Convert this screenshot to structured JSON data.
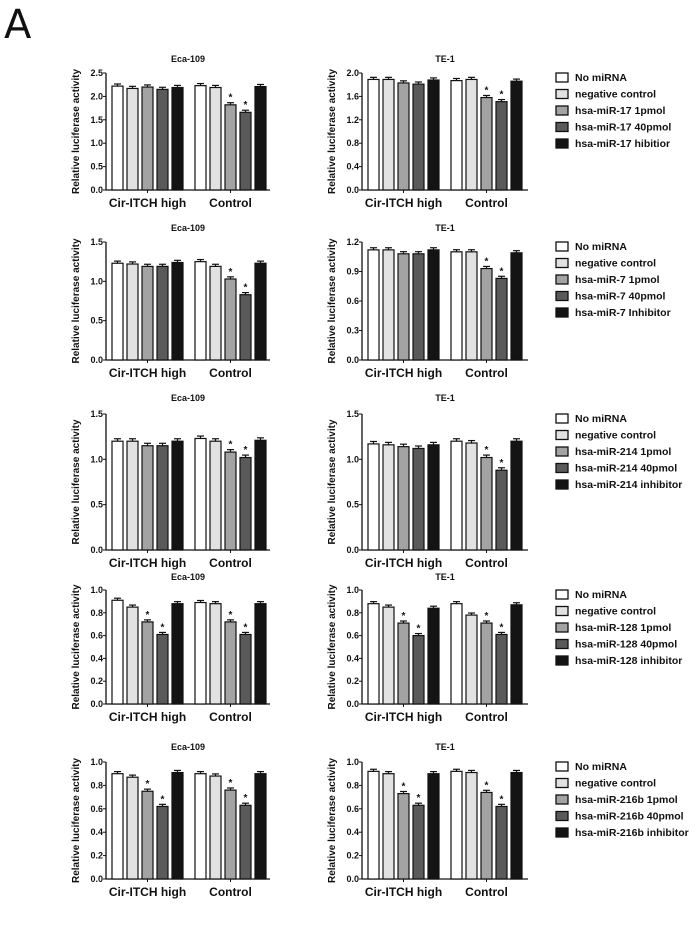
{
  "panel_label": "A",
  "colors": [
    "#ffffff",
    "#e2e2e2",
    "#a3a3a3",
    "#5a5a5a",
    "#141414"
  ],
  "chart_data": [
    {
      "type": "bar",
      "title": "Eca-109",
      "ylabel": "Relative luciferase activity",
      "categories": [
        "Cir-ITCH high",
        "Control"
      ],
      "ylim": [
        0,
        2.5
      ],
      "yticks": [
        "0.0",
        "0.5",
        "1.0",
        "1.5",
        "2.0",
        "2.5"
      ],
      "series": [
        {
          "name": "No miRNA",
          "values": [
            2.22,
            2.23
          ]
        },
        {
          "name": "negative control",
          "values": [
            2.17,
            2.19
          ]
        },
        {
          "name": "hsa-miR-17 1pmol",
          "values": [
            2.2,
            1.82
          ]
        },
        {
          "name": "hsa-miR-17 40pmol",
          "values": [
            2.15,
            1.66
          ]
        },
        {
          "name": "hsa-miR-17 hibitior",
          "values": [
            2.19,
            2.21
          ]
        }
      ],
      "significant": [
        [
          false,
          false,
          false,
          false,
          false
        ],
        [
          false,
          false,
          true,
          true,
          false
        ]
      ],
      "star": "*"
    },
    {
      "type": "bar",
      "title": "TE-1",
      "ylabel": "Relative luciferase activity",
      "categories": [
        "Cir-ITCH high",
        "Control"
      ],
      "ylim": [
        0,
        2.0
      ],
      "yticks": [
        "0.0",
        "0.4",
        "0.8",
        "1.2",
        "1.6",
        "2.0"
      ],
      "series": [
        {
          "name": "No miRNA",
          "values": [
            1.89,
            1.87
          ]
        },
        {
          "name": "negative control",
          "values": [
            1.89,
            1.89
          ]
        },
        {
          "name": "hsa-miR-17 1pmol",
          "values": [
            1.83,
            1.58
          ]
        },
        {
          "name": "hsa-miR-17 40pmol",
          "values": [
            1.81,
            1.51
          ]
        },
        {
          "name": "hsa-miR-17 hibitior",
          "values": [
            1.88,
            1.86
          ]
        }
      ],
      "significant": [
        [
          false,
          false,
          false,
          false,
          false
        ],
        [
          false,
          false,
          true,
          true,
          false
        ]
      ],
      "star": "*",
      "legend": "right"
    },
    {
      "type": "bar",
      "title": "Eca-109",
      "ylabel": "Relative luciferase activity",
      "categories": [
        "Cir-ITCH high",
        "Control"
      ],
      "ylim": [
        0,
        1.5
      ],
      "yticks": [
        "0.0",
        "0.5",
        "1.0",
        "1.5"
      ],
      "series": [
        {
          "name": "No miRNA",
          "values": [
            1.23,
            1.25
          ]
        },
        {
          "name": "negative control",
          "values": [
            1.22,
            1.19
          ]
        },
        {
          "name": "hsa-miR-7 1pmol",
          "values": [
            1.19,
            1.03
          ]
        },
        {
          "name": "hsa-miR-7 40pmol",
          "values": [
            1.19,
            0.83
          ]
        },
        {
          "name": "hsa-miR-7 Inhibitor",
          "values": [
            1.24,
            1.23
          ]
        }
      ],
      "significant": [
        [
          false,
          false,
          false,
          false,
          false
        ],
        [
          false,
          false,
          true,
          true,
          false
        ]
      ],
      "star": "*"
    },
    {
      "type": "bar",
      "title": "TE-1",
      "ylabel": "Relative luciferase activity",
      "categories": [
        "Cir-ITCH high",
        "Control"
      ],
      "ylim": [
        0,
        1.2
      ],
      "yticks": [
        "0.0",
        "0.3",
        "0.6",
        "0.9",
        "1.2"
      ],
      "series": [
        {
          "name": "No miRNA",
          "values": [
            1.12,
            1.1
          ]
        },
        {
          "name": "negative control",
          "values": [
            1.12,
            1.1
          ]
        },
        {
          "name": "hsa-miR-7 1pmol",
          "values": [
            1.08,
            0.93
          ]
        },
        {
          "name": "hsa-miR-7 40pmol",
          "values": [
            1.08,
            0.83
          ]
        },
        {
          "name": "hsa-miR-7 Inhibitor",
          "values": [
            1.12,
            1.09
          ]
        }
      ],
      "significant": [
        [
          false,
          false,
          false,
          false,
          false
        ],
        [
          false,
          false,
          true,
          true,
          false
        ]
      ],
      "star": "*",
      "legend": "right"
    },
    {
      "type": "bar",
      "title": "Eca-109",
      "ylabel": "Relative luciferase activity",
      "categories": [
        "Cir-ITCH high",
        "Control"
      ],
      "ylim": [
        0,
        1.5
      ],
      "yticks": [
        "0.0",
        "0.5",
        "1.0",
        "1.5"
      ],
      "series": [
        {
          "name": "No miRNA",
          "values": [
            1.2,
            1.23
          ]
        },
        {
          "name": "negative control",
          "values": [
            1.2,
            1.2
          ]
        },
        {
          "name": "hsa-miR-214 1pmol",
          "values": [
            1.15,
            1.08
          ]
        },
        {
          "name": "hsa-miR-214 40pmol",
          "values": [
            1.15,
            1.02
          ]
        },
        {
          "name": "hsa-miR-214 inhibitor",
          "values": [
            1.2,
            1.21
          ]
        }
      ],
      "significant": [
        [
          false,
          false,
          false,
          false,
          false
        ],
        [
          false,
          false,
          true,
          true,
          false
        ]
      ],
      "star": "*"
    },
    {
      "type": "bar",
      "title": "TE-1",
      "ylabel": "Relative luciferase activity",
      "categories": [
        "Cir-ITCH high",
        "Control"
      ],
      "ylim": [
        0,
        1.5
      ],
      "yticks": [
        "0.0",
        "0.5",
        "1.0",
        "1.5"
      ],
      "series": [
        {
          "name": "No miRNA",
          "values": [
            1.17,
            1.2
          ]
        },
        {
          "name": "negative control",
          "values": [
            1.16,
            1.18
          ]
        },
        {
          "name": "hsa-miR-214 1pmol",
          "values": [
            1.14,
            1.02
          ]
        },
        {
          "name": "hsa-miR-214 40pmol",
          "values": [
            1.12,
            0.88
          ]
        },
        {
          "name": "hsa-miR-214 inhibitor",
          "values": [
            1.16,
            1.2
          ]
        }
      ],
      "significant": [
        [
          false,
          false,
          false,
          false,
          false
        ],
        [
          false,
          false,
          true,
          true,
          false
        ]
      ],
      "star": "*",
      "legend": "right"
    },
    {
      "type": "bar",
      "title": "Eca-109",
      "ylabel": "Relative luciferase activity",
      "categories": [
        "Cir-ITCH high",
        "Control"
      ],
      "ylim": [
        0,
        1.0
      ],
      "yticks": [
        "0.0",
        "0.2",
        "0.4",
        "0.6",
        "0.8",
        "1.0"
      ],
      "series": [
        {
          "name": "No miRNA",
          "values": [
            0.91,
            0.89
          ]
        },
        {
          "name": "negative control",
          "values": [
            0.85,
            0.88
          ]
        },
        {
          "name": "hsa-miR-128 1pmol",
          "values": [
            0.72,
            0.72
          ]
        },
        {
          "name": "hsa-miR-128 40pmol",
          "values": [
            0.61,
            0.61
          ]
        },
        {
          "name": "hsa-miR-128 inhibitor",
          "values": [
            0.88,
            0.88
          ]
        }
      ],
      "significant": [
        [
          false,
          false,
          true,
          true,
          false
        ],
        [
          false,
          false,
          true,
          true,
          false
        ]
      ],
      "star": "*"
    },
    {
      "type": "bar",
      "title": "TE-1",
      "ylabel": "Relative luciferase activity",
      "categories": [
        "Cir-ITCH high",
        "Control"
      ],
      "ylim": [
        0,
        1.0
      ],
      "yticks": [
        "0.0",
        "0.2",
        "0.4",
        "0.6",
        "0.8",
        "1.0"
      ],
      "series": [
        {
          "name": "No miRNA",
          "values": [
            0.88,
            0.88
          ]
        },
        {
          "name": "negative control",
          "values": [
            0.85,
            0.78
          ]
        },
        {
          "name": "hsa-miR-128 1pmol",
          "values": [
            0.71,
            0.71
          ]
        },
        {
          "name": "hsa-miR-128 40pmol",
          "values": [
            0.6,
            0.61
          ]
        },
        {
          "name": "hsa-miR-128 inhibitor",
          "values": [
            0.84,
            0.87
          ]
        }
      ],
      "significant": [
        [
          false,
          false,
          true,
          true,
          false
        ],
        [
          false,
          false,
          true,
          true,
          false
        ]
      ],
      "star": "*",
      "legend": "right"
    },
    {
      "type": "bar",
      "title": "Eca-109",
      "ylabel": "Relative luciferase activity",
      "categories": [
        "Cir-ITCH high",
        "Control"
      ],
      "ylim": [
        0,
        1.0
      ],
      "yticks": [
        "0.0",
        "0.2",
        "0.4",
        "0.6",
        "0.8",
        "1.0"
      ],
      "series": [
        {
          "name": "No miRNA",
          "values": [
            0.9,
            0.9
          ]
        },
        {
          "name": "negative control",
          "values": [
            0.87,
            0.88
          ]
        },
        {
          "name": "hsa-miR-216b 1pmol",
          "values": [
            0.75,
            0.76
          ]
        },
        {
          "name": "hsa-miR-216b 40pmol",
          "values": [
            0.62,
            0.63
          ]
        },
        {
          "name": "hsa-miR-216b inhibitor",
          "values": [
            0.91,
            0.9
          ]
        }
      ],
      "significant": [
        [
          false,
          false,
          true,
          true,
          false
        ],
        [
          false,
          false,
          true,
          true,
          false
        ]
      ],
      "star": "*"
    },
    {
      "type": "bar",
      "title": "TE-1",
      "ylabel": "Relative luciferase activity",
      "categories": [
        "Cir-ITCH high",
        "Control"
      ],
      "ylim": [
        0,
        1.0
      ],
      "yticks": [
        "0.0",
        "0.2",
        "0.4",
        "0.6",
        "0.8",
        "1.0"
      ],
      "series": [
        {
          "name": "No miRNA",
          "values": [
            0.92,
            0.92
          ]
        },
        {
          "name": "negative control",
          "values": [
            0.9,
            0.91
          ]
        },
        {
          "name": "hsa-miR-216b 1pmol",
          "values": [
            0.73,
            0.74
          ]
        },
        {
          "name": "hsa-miR-216b 40pmol",
          "values": [
            0.63,
            0.62
          ]
        },
        {
          "name": "hsa-miR-216b inhibitor",
          "values": [
            0.9,
            0.91
          ]
        }
      ],
      "significant": [
        [
          false,
          false,
          true,
          true,
          false
        ],
        [
          false,
          false,
          true,
          true,
          false
        ]
      ],
      "star": "*",
      "legend": "right"
    }
  ]
}
